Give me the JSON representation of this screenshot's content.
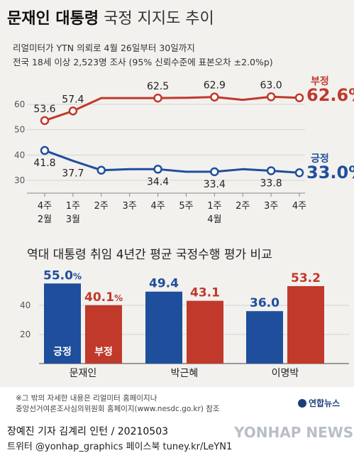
{
  "title": {
    "bold": "문재인 대통령",
    "light": "국정 지지도 추이"
  },
  "subtitle": {
    "line1": "리얼미터가 YTN 의뢰로 4월 26일부터 30일까지",
    "line2": "전국 18세 이상 2,523명 조사 (95% 신뢰수준에 표본오차 ±2.0%p)"
  },
  "colors": {
    "negative": "#c0392b",
    "positive": "#1f4e9c",
    "grid": "#cfcfcf"
  },
  "chart_data": [
    {
      "type": "line",
      "x": [
        "4주 2월",
        "1주 3월",
        "2주",
        "3주",
        "4주",
        "5주",
        "1주 4월",
        "2주",
        "3주",
        "4주"
      ],
      "x_ticks": [
        {
          "line1": "4주",
          "line2": "2월"
        },
        {
          "line1": "1주",
          "line2": "3월"
        },
        {
          "line1": "2주",
          "line2": ""
        },
        {
          "line1": "3주",
          "line2": ""
        },
        {
          "line1": "4주",
          "line2": ""
        },
        {
          "line1": "5주",
          "line2": ""
        },
        {
          "line1": "1주",
          "line2": "4월"
        },
        {
          "line1": "2주",
          "line2": ""
        },
        {
          "line1": "3주",
          "line2": ""
        },
        {
          "line1": "4주",
          "line2": ""
        }
      ],
      "yticks": [
        30,
        40,
        50,
        60
      ],
      "ylim": [
        30,
        65
      ],
      "series": [
        {
          "name": "부정",
          "values": [
            53.6,
            57.4,
            62.5,
            62.5,
            62.5,
            62.6,
            62.9,
            61.8,
            63.0,
            62.6
          ],
          "labels": [
            "53.6",
            "57.4",
            "",
            "",
            "62.5",
            "",
            "62.9",
            "",
            "63.0",
            ""
          ],
          "marker_idx": [
            0,
            1,
            4,
            6,
            8,
            9
          ],
          "end_value": "62.6%"
        },
        {
          "name": "긍정",
          "values": [
            41.8,
            37.7,
            34.0,
            34.4,
            34.4,
            33.4,
            33.4,
            34.4,
            33.8,
            33.0
          ],
          "labels": [
            "41.8",
            "37.7",
            "",
            "",
            "34.4",
            "",
            "33.4",
            "",
            "33.8",
            ""
          ],
          "marker_idx": [
            0,
            2,
            4,
            6,
            8,
            9
          ],
          "end_value": "33.0%"
        }
      ]
    },
    {
      "type": "bar",
      "title": "역대 대통령 취임 4년간 평균 국정수행 평가 비교",
      "categories": [
        "문재인",
        "박근혜",
        "이명박"
      ],
      "yticks": [
        20,
        40
      ],
      "ylim": [
        0,
        60
      ],
      "series": [
        {
          "name": "긍정",
          "values": [
            55.0,
            49.4,
            36.0
          ],
          "labels": [
            "55.0",
            "49.4",
            "36.0"
          ]
        },
        {
          "name": "부정",
          "values": [
            40.1,
            43.1,
            53.2
          ],
          "labels": [
            "40.1",
            "43.1",
            "53.2"
          ]
        }
      ]
    }
  ],
  "legend": {
    "neg_label": "부정",
    "neg_value": "62.6%",
    "pos_label": "긍정",
    "pos_value": "33.0%"
  },
  "bar_legend": {
    "pos": "긍정",
    "neg": "부정"
  },
  "note": {
    "line1": "※그 밖의 자세한 내용은 리얼미터 홈페이지나",
    "line2": "중앙선거여론조사심의위원회 홈페이지(www.nesdc.go.kr) 참조"
  },
  "logo_text": "연합뉴스",
  "watermark": "YONHAP NEWS",
  "footer": {
    "line1": "장예진 기자  김계리 인턴 / 20210503",
    "line2": "트위터 @yonhap_graphics  페이스북 tuney.kr/LeYN1"
  }
}
